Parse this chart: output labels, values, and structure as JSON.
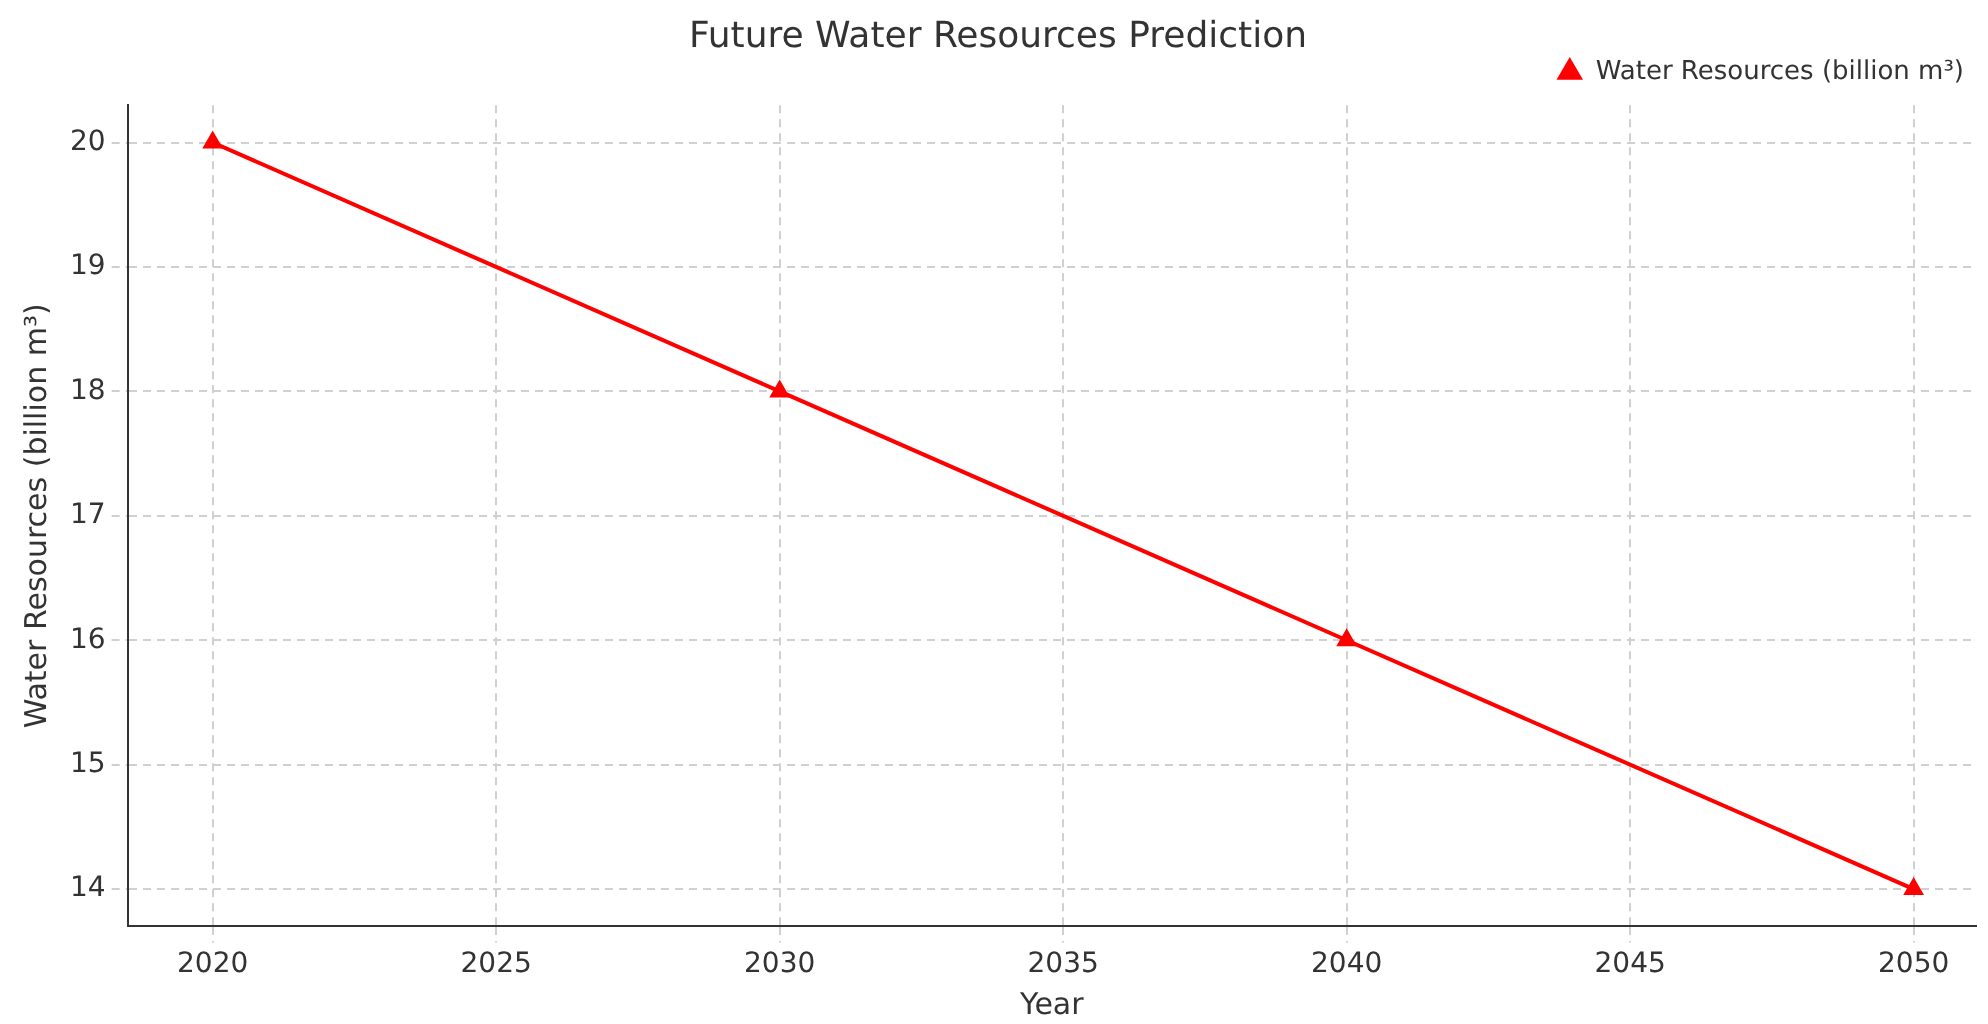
{
  "chart_data": {
    "type": "line",
    "title": "Future Water Resources Prediction",
    "xlabel": "Year",
    "ylabel": "Water Resources (billion m³)",
    "x": [
      2020,
      2030,
      2040,
      2050
    ],
    "series": [
      {
        "name": "Water Resources (billion m³)",
        "color": "#ff0000",
        "values": [
          20,
          18,
          16,
          14
        ]
      }
    ],
    "xlim": [
      2018.5,
      2051.1
    ],
    "xticks": [
      2020,
      2025,
      2030,
      2035,
      2040,
      2045,
      2050
    ],
    "ylim": [
      13.7,
      20.3
    ],
    "yticks": [
      14,
      15,
      16,
      17,
      18,
      19,
      20
    ],
    "grid": true,
    "legend": "top right",
    "marker": "triangle",
    "line_style": "solid"
  }
}
